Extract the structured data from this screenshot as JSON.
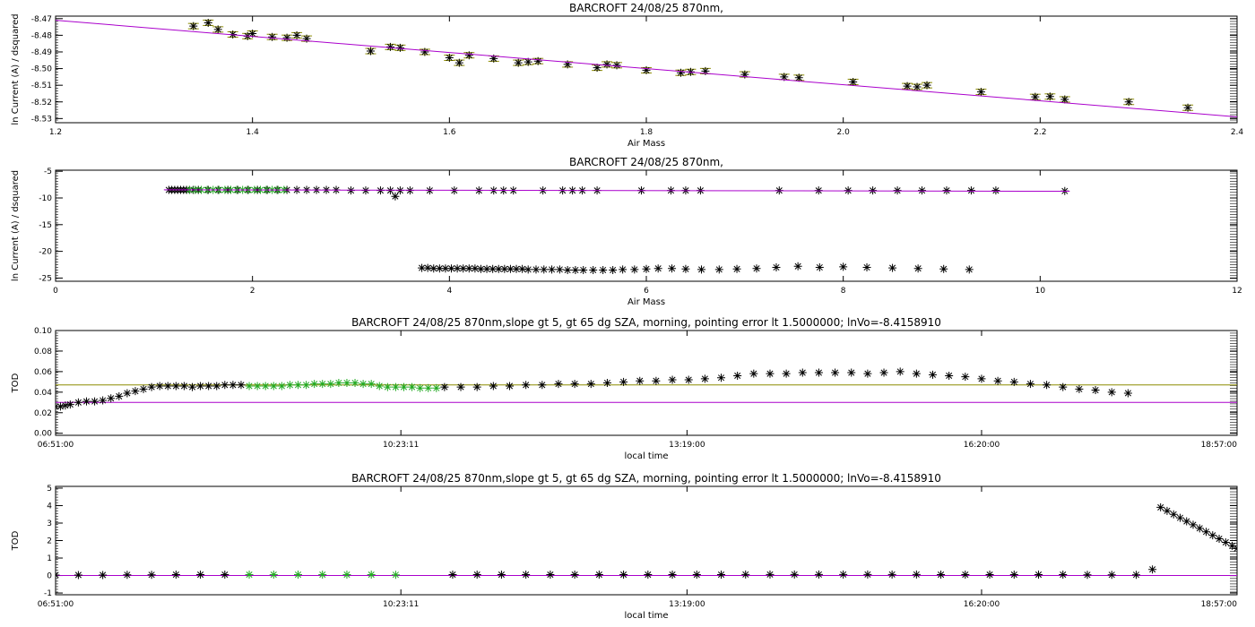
{
  "chart_data": [
    {
      "type": "scatter",
      "title": "BARCROFT 24/08/25 870nm,",
      "xlabel": "Air Mass",
      "ylabel": "ln Current (A) / dsquared",
      "xlim": [
        1.2,
        2.4
      ],
      "ylim": [
        -8.5325,
        -8.4685
      ],
      "xticks": [
        "1.2",
        "1.4",
        "1.6",
        "1.8",
        "2.0",
        "2.2",
        "2.4"
      ],
      "yticks": [
        "-8.47",
        "-8.48",
        "-8.49",
        "-8.50",
        "-8.51",
        "-8.52",
        "-8.53"
      ],
      "colors": {
        "points": "#000000",
        "errorbars": "#8b8b00",
        "fit": "#aa00cc"
      },
      "fit_line": {
        "x": [
          1.2,
          2.4
        ],
        "y": [
          -8.471,
          -8.529
        ]
      },
      "series": [
        {
          "marker": "asterisk",
          "x": [
            1.34,
            1.355,
            1.365,
            1.38,
            1.395,
            1.4,
            1.42,
            1.435,
            1.445,
            1.455,
            1.52,
            1.54,
            1.55,
            1.575,
            1.6,
            1.61,
            1.62,
            1.645,
            1.67,
            1.68,
            1.69,
            1.72,
            1.75,
            1.76,
            1.77,
            1.8,
            1.835,
            1.845,
            1.86,
            1.9,
            1.94,
            1.955,
            2.01,
            2.065,
            2.075,
            2.085,
            2.14,
            2.195,
            2.21,
            2.225,
            2.29,
            2.35
          ],
          "y": [
            -8.4745,
            -8.4725,
            -8.4765,
            -8.4795,
            -8.4805,
            -8.479,
            -8.481,
            -8.4815,
            -8.48,
            -8.482,
            -8.4895,
            -8.487,
            -8.4875,
            -8.49,
            -8.4935,
            -8.4965,
            -8.492,
            -8.494,
            -8.4965,
            -8.496,
            -8.4955,
            -8.4975,
            -8.4995,
            -8.4975,
            -8.498,
            -8.501,
            -8.5025,
            -8.502,
            -8.5015,
            -8.5035,
            -8.505,
            -8.5055,
            -8.508,
            -8.5105,
            -8.511,
            -8.51,
            -8.514,
            -8.517,
            -8.5168,
            -8.5185,
            -8.52,
            -8.5235
          ],
          "errorbars": true
        }
      ]
    },
    {
      "type": "scatter",
      "title": "BARCROFT 24/08/25 870nm,",
      "xlabel": "Air Mass",
      "ylabel": "ln Current (A) / dsquared",
      "xlim": [
        0,
        12
      ],
      "ylim": [
        -25.6,
        -4.8
      ],
      "xticks": [
        "0",
        "2",
        "4",
        "6",
        "8",
        "10",
        "12"
      ],
      "yticks": [
        "-5",
        "-10",
        "-15",
        "-20",
        "-25"
      ],
      "colors": {
        "points": "#000000",
        "selected": "#22aa22",
        "fit": "#aa00cc"
      },
      "fit_line": {
        "x": [
          1.1,
          10.3
        ],
        "y": [
          -8.47,
          -8.75
        ]
      },
      "series": [
        {
          "marker": "asterisk",
          "x": [
            1.15,
            1.18,
            1.21,
            1.24,
            1.27,
            1.3,
            1.33,
            1.36,
            1.4,
            1.45,
            1.55,
            1.65,
            1.75,
            1.85,
            1.95,
            2.05,
            2.15,
            2.25,
            2.35,
            2.45,
            2.55,
            2.65,
            2.75,
            2.85,
            3.0,
            3.15,
            3.3,
            3.4,
            3.45,
            3.5,
            3.6,
            3.8,
            4.05,
            4.3,
            4.45,
            4.55,
            4.65,
            4.95,
            5.15,
            5.25,
            5.35,
            5.5,
            5.95,
            6.25,
            6.4,
            6.55,
            7.35,
            7.75,
            8.05,
            8.3,
            8.55,
            8.8,
            9.05,
            9.3,
            9.55,
            10.25
          ],
          "y": [
            -8.5,
            -8.5,
            -8.5,
            -8.5,
            -8.5,
            -8.5,
            -8.5,
            -8.5,
            -8.5,
            -8.5,
            -8.5,
            -8.5,
            -8.5,
            -8.5,
            -8.5,
            -8.5,
            -8.5,
            -8.5,
            -8.5,
            -8.5,
            -8.5,
            -8.5,
            -8.5,
            -8.5,
            -8.6,
            -8.6,
            -8.6,
            -8.6,
            -9.7,
            -8.6,
            -8.6,
            -8.6,
            -8.6,
            -8.6,
            -8.6,
            -8.6,
            -8.6,
            -8.6,
            -8.6,
            -8.6,
            -8.6,
            -8.6,
            -8.6,
            -8.6,
            -8.6,
            -8.6,
            -8.6,
            -8.6,
            -8.6,
            -8.6,
            -8.6,
            -8.6,
            -8.6,
            -8.6,
            -8.6,
            -8.7
          ]
        },
        {
          "marker": "asterisk",
          "x": [
            3.72,
            3.78,
            3.84,
            3.9,
            3.96,
            4.02,
            4.08,
            4.14,
            4.2,
            4.26,
            4.32,
            4.38,
            4.44,
            4.5,
            4.56,
            4.62,
            4.68,
            4.74,
            4.8,
            4.88,
            4.96,
            5.04,
            5.12,
            5.2,
            5.28,
            5.36,
            5.46,
            5.56,
            5.66,
            5.76,
            5.88,
            6.0,
            6.12,
            6.26,
            6.4,
            6.56,
            6.74,
            6.92,
            7.12,
            7.32,
            7.54,
            7.76,
            8.0,
            8.24,
            8.5,
            8.76,
            9.02,
            9.28
          ],
          "y": [
            -23.1,
            -23.1,
            -23.2,
            -23.2,
            -23.2,
            -23.2,
            -23.2,
            -23.2,
            -23.2,
            -23.2,
            -23.3,
            -23.3,
            -23.3,
            -23.3,
            -23.3,
            -23.3,
            -23.3,
            -23.3,
            -23.4,
            -23.4,
            -23.4,
            -23.4,
            -23.4,
            -23.5,
            -23.5,
            -23.5,
            -23.5,
            -23.5,
            -23.5,
            -23.4,
            -23.4,
            -23.3,
            -23.2,
            -23.2,
            -23.3,
            -23.4,
            -23.4,
            -23.3,
            -23.2,
            -23.0,
            -22.8,
            -23.0,
            -22.9,
            -23.0,
            -23.1,
            -23.2,
            -23.3,
            -23.4
          ]
        },
        {
          "marker": "asterisk",
          "selected": true,
          "x": [
            1.36,
            1.42,
            1.48,
            1.54,
            1.6,
            1.66,
            1.72,
            1.78,
            1.84,
            1.9,
            1.96,
            2.02,
            2.08,
            2.14,
            2.2,
            2.26,
            2.32
          ],
          "y": [
            -8.5,
            -8.5,
            -8.5,
            -8.5,
            -8.5,
            -8.5,
            -8.5,
            -8.5,
            -8.5,
            -8.5,
            -8.5,
            -8.5,
            -8.5,
            -8.5,
            -8.5,
            -8.5,
            -8.5
          ]
        }
      ]
    },
    {
      "type": "scatter",
      "title": "BARCROFT 24/08/25 870nm,slope gt 5, gt 65 dg SZA, morning, pointing error lt 1.5000000; lnVo=-8.4158910",
      "xlabel": "local time",
      "ylabel": "TOD",
      "xlim": [
        "06:51:00",
        "18:57:00"
      ],
      "ylim": [
        -0.002,
        0.1
      ],
      "xticks": [
        "06:51:00",
        "10:23:11",
        "13:19:00",
        "16:20:00",
        "18:57:00"
      ],
      "yticks": [
        "0.10",
        "0.08",
        "0.06",
        "0.04",
        "0.02",
        "0.00"
      ],
      "colors": {
        "points": "#000000",
        "selected": "#22aa22",
        "hline_mean": "#8b8b00",
        "hline_low": "#aa00cc"
      },
      "hlines": [
        0.047,
        0.03
      ],
      "series": [
        {
          "marker": "asterisk",
          "x": [
            "06:51",
            "06:54",
            "06:57",
            "07:00",
            "07:05",
            "07:10",
            "07:15",
            "07:20",
            "07:25",
            "07:30",
            "07:35",
            "07:40",
            "07:45",
            "07:50",
            "07:55",
            "08:00",
            "08:05",
            "08:10",
            "08:15",
            "08:20",
            "08:25",
            "08:30",
            "08:35",
            "08:40",
            "08:45",
            "10:50",
            "11:00",
            "11:10",
            "11:20",
            "11:30",
            "11:40",
            "11:50",
            "12:00",
            "12:10",
            "12:20",
            "12:30",
            "12:40",
            "12:50",
            "13:00",
            "13:10",
            "13:20",
            "13:30",
            "13:40",
            "13:50",
            "14:00",
            "14:10",
            "14:20",
            "14:30",
            "14:40",
            "14:50",
            "15:00",
            "15:10",
            "15:20",
            "15:30",
            "15:40",
            "15:50",
            "16:00",
            "16:10",
            "16:20",
            "16:30",
            "16:40",
            "16:50",
            "17:00",
            "17:10",
            "17:20",
            "17:30",
            "17:40",
            "17:50"
          ],
          "y": [
            0.026,
            0.026,
            0.027,
            0.028,
            0.03,
            0.031,
            0.031,
            0.032,
            0.034,
            0.036,
            0.039,
            0.041,
            0.043,
            0.045,
            0.046,
            0.046,
            0.046,
            0.046,
            0.045,
            0.046,
            0.046,
            0.046,
            0.047,
            0.047,
            0.047,
            0.045,
            0.045,
            0.045,
            0.046,
            0.046,
            0.047,
            0.047,
            0.048,
            0.048,
            0.048,
            0.049,
            0.05,
            0.051,
            0.051,
            0.052,
            0.052,
            0.053,
            0.054,
            0.056,
            0.058,
            0.058,
            0.058,
            0.059,
            0.059,
            0.059,
            0.059,
            0.058,
            0.059,
            0.06,
            0.058,
            0.057,
            0.056,
            0.055,
            0.053,
            0.051,
            0.05,
            0.048,
            0.047,
            0.045,
            0.043,
            0.042,
            0.04,
            0.039
          ]
        },
        {
          "marker": "asterisk",
          "selected": true,
          "x": [
            "08:50",
            "08:55",
            "09:00",
            "09:05",
            "09:10",
            "09:15",
            "09:20",
            "09:25",
            "09:30",
            "09:35",
            "09:40",
            "09:45",
            "09:50",
            "09:55",
            "10:00",
            "10:05",
            "10:10",
            "10:15",
            "10:20",
            "10:25",
            "10:30",
            "10:35",
            "10:40",
            "10:45"
          ],
          "y": [
            0.046,
            0.046,
            0.046,
            0.046,
            0.046,
            0.047,
            0.047,
            0.047,
            0.048,
            0.048,
            0.048,
            0.049,
            0.049,
            0.049,
            0.048,
            0.048,
            0.046,
            0.045,
            0.045,
            0.045,
            0.045,
            0.044,
            0.044,
            0.044
          ]
        }
      ]
    },
    {
      "type": "scatter",
      "title": "BARCROFT 24/08/25 870nm,slope gt 5, gt 65 dg SZA, morning, pointing error lt 1.5000000; lnVo=-8.4158910",
      "xlabel": "local time",
      "ylabel": "TOD",
      "xlim": [
        "06:51:00",
        "18:57:00"
      ],
      "ylim": [
        -1.1,
        5.1
      ],
      "xticks": [
        "06:51:00",
        "10:23:11",
        "13:19:00",
        "16:20:00",
        "18:57:00"
      ],
      "yticks": [
        "5",
        "4",
        "3",
        "2",
        "1",
        "0",
        "-1"
      ],
      "colors": {
        "points": "#000000",
        "selected": "#22aa22",
        "fit": "#aa00cc"
      },
      "hlines": [
        0.0
      ],
      "series": [
        {
          "marker": "asterisk",
          "x": [
            "06:51",
            "07:05",
            "07:20",
            "07:35",
            "07:50",
            "08:05",
            "08:20",
            "08:35",
            "10:55",
            "11:10",
            "11:25",
            "11:40",
            "11:55",
            "12:10",
            "12:25",
            "12:40",
            "12:55",
            "13:10",
            "13:25",
            "13:40",
            "13:55",
            "14:10",
            "14:25",
            "14:40",
            "14:55",
            "15:10",
            "15:25",
            "15:40",
            "15:55",
            "16:10",
            "16:25",
            "16:40",
            "16:55",
            "17:10",
            "17:25",
            "17:40",
            "17:55",
            "18:05"
          ],
          "y": [
            0.03,
            0.03,
            0.03,
            0.04,
            0.04,
            0.05,
            0.05,
            0.05,
            0.05,
            0.05,
            0.05,
            0.05,
            0.05,
            0.05,
            0.05,
            0.05,
            0.05,
            0.05,
            0.05,
            0.05,
            0.06,
            0.06,
            0.06,
            0.06,
            0.06,
            0.06,
            0.06,
            0.06,
            0.05,
            0.05,
            0.05,
            0.05,
            0.05,
            0.05,
            0.04,
            0.04,
            0.04,
            0.35
          ]
        },
        {
          "marker": "asterisk",
          "x": [
            "18:10",
            "18:14",
            "18:18",
            "18:22",
            "18:26",
            "18:30",
            "18:34",
            "18:38",
            "18:42",
            "18:46",
            "18:50",
            "18:54",
            "18:57"
          ],
          "y": [
            3.9,
            3.7,
            3.5,
            3.3,
            3.1,
            2.9,
            2.7,
            2.5,
            2.3,
            2.1,
            1.9,
            1.7,
            1.55
          ]
        },
        {
          "marker": "asterisk",
          "selected": true,
          "x": [
            "08:50",
            "09:05",
            "09:20",
            "09:35",
            "09:50",
            "10:05",
            "10:20"
          ],
          "y": [
            0.05,
            0.05,
            0.05,
            0.05,
            0.05,
            0.05,
            0.04
          ]
        }
      ]
    }
  ]
}
